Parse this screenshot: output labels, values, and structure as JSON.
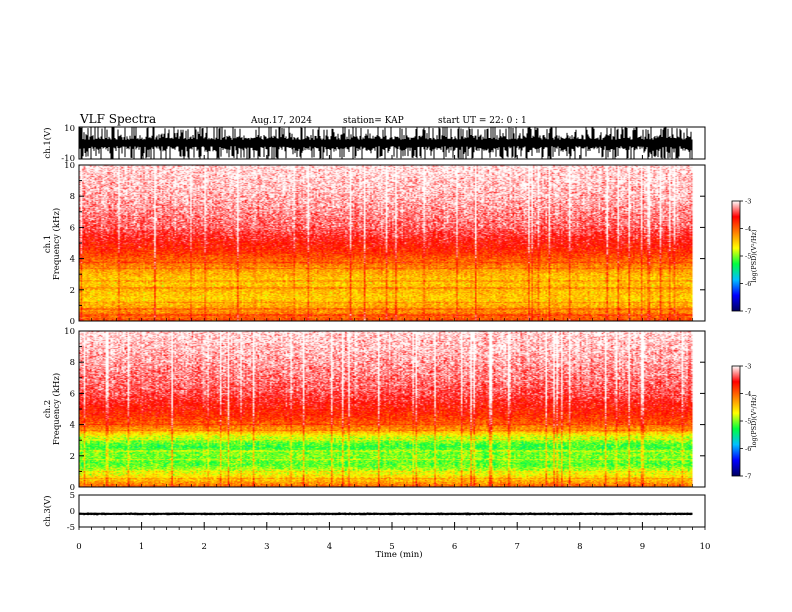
{
  "header": {
    "title": "VLF Spectra",
    "date": "Aug.17, 2024",
    "station": "station= KAP",
    "start": "start  UT =   22: 0  : 1"
  },
  "chart_data": [
    {
      "id": "ch1-waveform",
      "type": "line",
      "ylabel": "ch.1(V)",
      "ylim": [
        -10,
        10
      ],
      "yticks": [
        "10",
        "-10"
      ],
      "xlim": [
        0,
        10
      ],
      "description_values": {
        "x_end": 9.8,
        "amplitude_min": -10,
        "amplitude_max": 10
      }
    },
    {
      "id": "ch1-spectrogram",
      "type": "heatmap",
      "ylabel_line1": "ch.1",
      "ylabel_line2": "Frequency  (kHz)",
      "ylim": [
        0,
        10
      ],
      "yticks": [
        "0",
        "2",
        "4",
        "6",
        "8",
        "10"
      ],
      "xlim": [
        0,
        10
      ],
      "x_end": 9.8,
      "colorbar": {
        "label": "log(PSD)(V²/Hz)",
        "range": [
          -7,
          -3
        ],
        "ticks": [
          "-3",
          "-4",
          "-5",
          "-6",
          "-7"
        ],
        "colors": [
          "#000060",
          "#0000ff",
          "#00c0ff",
          "#00ff40",
          "#ffff00",
          "#ff8000",
          "#ff0000",
          "#ffffff"
        ]
      },
      "level_profile": [
        [
          0,
          -3.9
        ],
        [
          0.4,
          -4.1
        ],
        [
          0.8,
          -4.3
        ],
        [
          1.4,
          -4.5
        ],
        [
          2.0,
          -4.4
        ],
        [
          2.6,
          -4.5
        ],
        [
          3.2,
          -4.3
        ],
        [
          3.6,
          -4.1
        ],
        [
          4.0,
          -3.95
        ],
        [
          4.6,
          -3.7
        ],
        [
          6.0,
          -3.35
        ],
        [
          8.0,
          -3.15
        ],
        [
          10.0,
          -3.05
        ]
      ]
    },
    {
      "id": "ch2-spectrogram",
      "type": "heatmap",
      "ylabel_line1": "ch.2",
      "ylabel_line2": "Frequency  (kHz)",
      "ylim": [
        0,
        10
      ],
      "yticks": [
        "0",
        "2",
        "4",
        "6",
        "8",
        "10"
      ],
      "xlim": [
        0,
        10
      ],
      "x_end": 9.8,
      "colorbar": {
        "label": "log(PSD)(V²/Hz)",
        "range": [
          -7,
          -3
        ],
        "ticks": [
          "-3",
          "-4",
          "-5",
          "-6",
          "-7"
        ],
        "colors": [
          "#000060",
          "#0000ff",
          "#00c0ff",
          "#00ff40",
          "#ffff00",
          "#ff8000",
          "#ff0000",
          "#ffffff"
        ]
      },
      "level_profile": [
        [
          0,
          -4.0
        ],
        [
          0.4,
          -4.4
        ],
        [
          0.8,
          -4.7
        ],
        [
          1.4,
          -5.1
        ],
        [
          2.0,
          -5.0
        ],
        [
          2.6,
          -5.2
        ],
        [
          3.2,
          -4.8
        ],
        [
          3.6,
          -4.3
        ],
        [
          4.0,
          -4.0
        ],
        [
          4.6,
          -3.75
        ],
        [
          6.0,
          -3.4
        ],
        [
          8.0,
          -3.2
        ],
        [
          10.0,
          -3.05
        ]
      ]
    },
    {
      "id": "ch3-waveform",
      "type": "line",
      "ylabel": "ch.3(V)",
      "ylim": [
        -5,
        5
      ],
      "yticks": [
        "5",
        "0",
        "-5"
      ],
      "xlim": [
        0,
        10
      ],
      "xlabel": "Time  (min)",
      "xticks": [
        "0",
        "1",
        "2",
        "3",
        "4",
        "5",
        "6",
        "7",
        "8",
        "9",
        "10"
      ],
      "description_values": {
        "x_end": 9.8,
        "level_min": -1.2,
        "level_max": -0.6
      }
    }
  ]
}
